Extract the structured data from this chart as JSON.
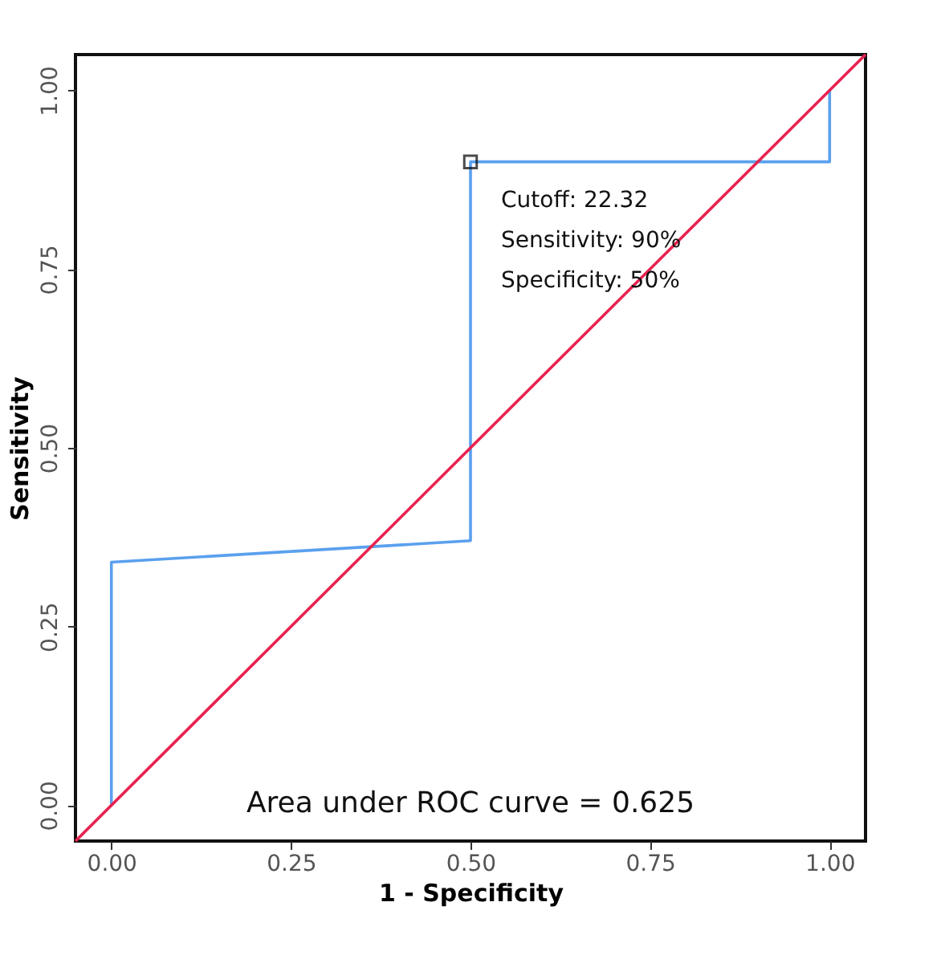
{
  "chart_data": {
    "type": "line",
    "xlabel": "1 - Specificity",
    "ylabel": "Sensitivity",
    "xlim": [
      -0.05,
      1.05
    ],
    "ylim": [
      -0.05,
      1.05
    ],
    "xticks": [
      {
        "value": 0,
        "label": "0.00"
      },
      {
        "value": 0.25,
        "label": "0.25"
      },
      {
        "value": 0.5,
        "label": "0.50"
      },
      {
        "value": 0.75,
        "label": "0.75"
      },
      {
        "value": 1,
        "label": "1.00"
      }
    ],
    "yticks": [
      {
        "value": 0,
        "label": "0.00"
      },
      {
        "value": 0.25,
        "label": "0.25"
      },
      {
        "value": 0.5,
        "label": "0.50"
      },
      {
        "value": 0.75,
        "label": "0.75"
      },
      {
        "value": 1,
        "label": "1.00"
      }
    ],
    "grid": false,
    "series": [
      {
        "color": "#5aa0ee",
        "x": [
          0,
          0,
          0.5,
          0.5,
          1,
          1
        ],
        "values": [
          0,
          0.34,
          0.37,
          0.9,
          0.9,
          1
        ]
      },
      {
        "color": "#e8224f",
        "x": [
          -0.05,
          1.05
        ],
        "values": [
          -0.05,
          1.05
        ]
      },
      {
        "type": "scatter",
        "marker": "square",
        "color": "#000000",
        "x": [
          0.5
        ],
        "values": [
          0.9
        ]
      }
    ],
    "annotations": [
      "Cutoff: 22.32",
      "Sensitivity: 90%",
      "Specificity: 50%",
      "Area under ROC curve =  0.625"
    ]
  }
}
